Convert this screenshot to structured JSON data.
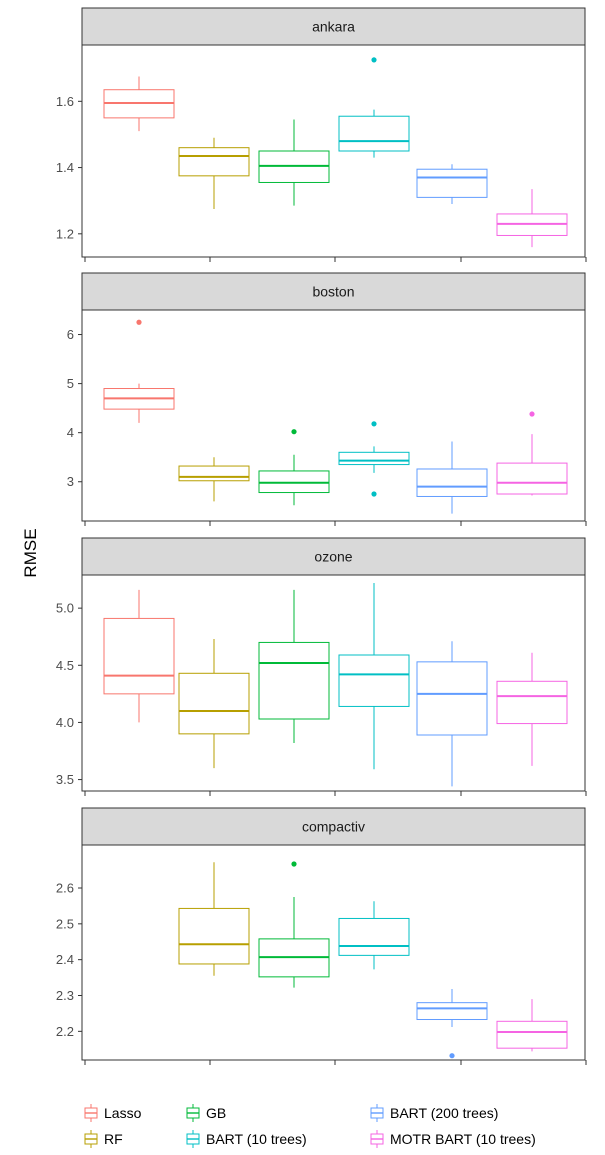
{
  "chart_data": {
    "type": "boxplot",
    "ylabel": "RMSE",
    "legend_position": "bottom",
    "grid": false,
    "colors": {
      "Lasso": "#F8766D",
      "RF": "#B79F00",
      "GB": "#00BA38",
      "BART (10 trees)": "#00BFC4",
      "BART (200 trees)": "#619CFF",
      "MOTR BART (10 trees)": "#F564E3"
    },
    "legend": [
      {
        "name": "Lasso",
        "label": "Lasso"
      },
      {
        "name": "RF",
        "label": "RF"
      },
      {
        "name": "GB",
        "label": "GB"
      },
      {
        "name": "BART (10 trees)",
        "label": "BART (10 trees)"
      },
      {
        "name": "BART (200 trees)",
        "label": "BART (200 trees)"
      },
      {
        "name": "MOTR BART (10 trees)",
        "label": "MOTR BART (10 trees)"
      }
    ],
    "panels": [
      {
        "title": "ankara",
        "ylim": [
          1.13,
          1.77
        ],
        "yticks": [
          1.2,
          1.4,
          1.6
        ],
        "tick_labels": [
          "1.2",
          "1.4",
          "1.6"
        ],
        "boxes": [
          {
            "name": "Lasso",
            "low": 1.51,
            "q1": 1.55,
            "median": 1.595,
            "q3": 1.635,
            "high": 1.675,
            "outliers": []
          },
          {
            "name": "RF",
            "low": 1.275,
            "q1": 1.375,
            "median": 1.435,
            "q3": 1.46,
            "high": 1.49,
            "outliers": []
          },
          {
            "name": "GB",
            "low": 1.285,
            "q1": 1.355,
            "median": 1.405,
            "q3": 1.45,
            "high": 1.545,
            "outliers": []
          },
          {
            "name": "BART (10 trees)",
            "low": 1.43,
            "q1": 1.45,
            "median": 1.48,
            "q3": 1.555,
            "high": 1.575,
            "outliers": [
              1.725
            ]
          },
          {
            "name": "BART (200 trees)",
            "low": 1.29,
            "q1": 1.31,
            "median": 1.37,
            "q3": 1.395,
            "high": 1.41,
            "outliers": []
          },
          {
            "name": "MOTR BART (10 trees)",
            "low": 1.16,
            "q1": 1.195,
            "median": 1.23,
            "q3": 1.26,
            "high": 1.335,
            "outliers": []
          }
        ]
      },
      {
        "title": "boston",
        "ylim": [
          2.2,
          6.5
        ],
        "yticks": [
          3,
          4,
          5,
          6
        ],
        "tick_labels": [
          "3",
          "4",
          "5",
          "6"
        ],
        "boxes": [
          {
            "name": "Lasso",
            "low": 4.2,
            "q1": 4.48,
            "median": 4.7,
            "q3": 4.9,
            "high": 5.0,
            "outliers": [
              6.25
            ]
          },
          {
            "name": "RF",
            "low": 2.6,
            "q1": 3.02,
            "median": 3.1,
            "q3": 3.32,
            "high": 3.5,
            "outliers": []
          },
          {
            "name": "GB",
            "low": 2.52,
            "q1": 2.78,
            "median": 2.98,
            "q3": 3.22,
            "high": 3.55,
            "outliers": [
              4.02
            ]
          },
          {
            "name": "BART (10 trees)",
            "low": 3.18,
            "q1": 3.35,
            "median": 3.43,
            "q3": 3.6,
            "high": 3.72,
            "outliers": [
              4.18,
              2.75
            ]
          },
          {
            "name": "BART (200 trees)",
            "low": 2.35,
            "q1": 2.7,
            "median": 2.9,
            "q3": 3.26,
            "high": 3.82,
            "outliers": []
          },
          {
            "name": "MOTR BART (10 trees)",
            "low": 2.72,
            "q1": 2.75,
            "median": 2.98,
            "q3": 3.38,
            "high": 3.97,
            "outliers": [
              4.38
            ]
          }
        ]
      },
      {
        "title": "ozone",
        "ylim": [
          3.4,
          5.29
        ],
        "yticks": [
          3.5,
          4.0,
          4.5,
          5.0
        ],
        "tick_labels": [
          "3.5",
          "4.0",
          "4.5",
          "5.0"
        ],
        "boxes": [
          {
            "name": "Lasso",
            "low": 4.0,
            "q1": 4.25,
            "median": 4.41,
            "q3": 4.91,
            "high": 5.16,
            "outliers": []
          },
          {
            "name": "RF",
            "low": 3.6,
            "q1": 3.9,
            "median": 4.1,
            "q3": 4.43,
            "high": 4.73,
            "outliers": []
          },
          {
            "name": "GB",
            "low": 3.82,
            "q1": 4.03,
            "median": 4.52,
            "q3": 4.7,
            "high": 5.16,
            "outliers": []
          },
          {
            "name": "BART (10 trees)",
            "low": 3.59,
            "q1": 4.14,
            "median": 4.42,
            "q3": 4.59,
            "high": 5.22,
            "outliers": []
          },
          {
            "name": "BART (200 trees)",
            "low": 3.44,
            "q1": 3.89,
            "median": 4.25,
            "q3": 4.53,
            "high": 4.71,
            "outliers": []
          },
          {
            "name": "MOTR BART (10 trees)",
            "low": 3.62,
            "q1": 3.99,
            "median": 4.23,
            "q3": 4.36,
            "high": 4.61,
            "outliers": []
          }
        ]
      },
      {
        "title": "compactiv",
        "ylim": [
          2.12,
          2.72
        ],
        "yticks": [
          2.2,
          2.3,
          2.4,
          2.5,
          2.6
        ],
        "tick_labels": [
          "2.2",
          "2.3",
          "2.4",
          "2.5",
          "2.6"
        ],
        "boxes": [
          {
            "name": "RF",
            "low": 2.355,
            "q1": 2.388,
            "median": 2.443,
            "q3": 2.543,
            "high": 2.672,
            "outliers": []
          },
          {
            "name": "GB",
            "low": 2.322,
            "q1": 2.352,
            "median": 2.407,
            "q3": 2.458,
            "high": 2.575,
            "outliers": [
              2.667
            ]
          },
          {
            "name": "BART (10 trees)",
            "low": 2.373,
            "q1": 2.412,
            "median": 2.438,
            "q3": 2.515,
            "high": 2.563,
            "outliers": []
          },
          {
            "name": "BART (200 trees)",
            "low": 2.212,
            "q1": 2.233,
            "median": 2.264,
            "q3": 2.28,
            "high": 2.318,
            "outliers": [
              2.132
            ]
          },
          {
            "name": "MOTR BART (10 trees)",
            "low": 2.144,
            "q1": 2.153,
            "median": 2.198,
            "q3": 2.228,
            "high": 2.29,
            "outliers": []
          }
        ]
      }
    ]
  }
}
